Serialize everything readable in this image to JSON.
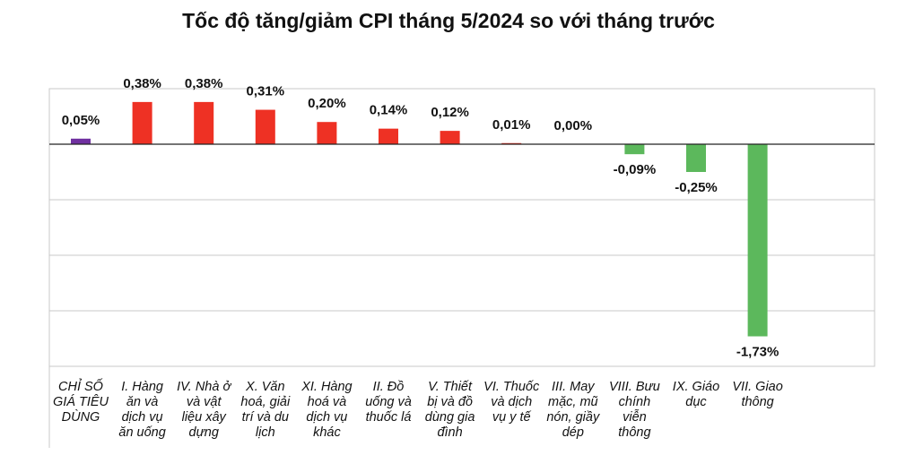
{
  "chart_data": {
    "type": "bar",
    "title": "Tốc độ tăng/giảm CPI tháng 5/2024 so với tháng trước",
    "unit": "%",
    "categories": [
      "CHỈ SỐ GIÁ TIÊU DÙNG",
      "I. Hàng ăn và dịch vụ ăn uống",
      "IV. Nhà ở và vật liệu xây dựng",
      "X. Văn hoá, giải trí và du lịch",
      "XI. Hàng hoá và dịch vụ khác",
      "II. Đồ uống và thuốc lá",
      "V. Thiết bị và đồ dùng gia đình",
      "VI. Thuốc và dịch vụ y tế",
      "III. May mặc, mũ nón, giầy dép",
      "VIII. Bưu chính viễn thông",
      "IX. Giáo dục",
      "VII. Giao thông"
    ],
    "category_lines": [
      [
        "CHỈ SỐ",
        "GIÁ TIÊU",
        "DÙNG"
      ],
      [
        "I. Hàng",
        "ăn và",
        "dịch vụ",
        "ăn uống"
      ],
      [
        "IV. Nhà ở",
        "và vật",
        "liệu xây",
        "dựng"
      ],
      [
        "X. Văn",
        "hoá, giải",
        "trí và du",
        "lịch"
      ],
      [
        "XI. Hàng",
        "hoá và",
        "dịch vụ",
        "khác"
      ],
      [
        "II. Đồ",
        "uống và",
        "thuốc lá"
      ],
      [
        "V. Thiết",
        "bị và đồ",
        "dùng gia",
        "đình"
      ],
      [
        "VI. Thuốc",
        "và dịch",
        "vụ y tế"
      ],
      [
        "III. May",
        "mặc, mũ",
        "nón, giầy",
        "dép"
      ],
      [
        "VIII. Bưu",
        "chính",
        "viễn",
        "thông"
      ],
      [
        "IX. Giáo",
        "dục"
      ],
      [
        "VII. Giao",
        "thông"
      ]
    ],
    "values": [
      0.05,
      0.38,
      0.38,
      0.31,
      0.2,
      0.14,
      0.12,
      0.01,
      0.0,
      -0.09,
      -0.25,
      -1.73
    ],
    "value_labels": [
      "0,05%",
      "0,38%",
      "0,38%",
      "0,31%",
      "0,20%",
      "0,14%",
      "0,12%",
      "0,01%",
      "0,00%",
      "-0,09%",
      "-0,25%",
      "-1,73%"
    ],
    "colors": {
      "total": "#7030A0",
      "increase": "#EE3124",
      "decrease": "#5CB85C",
      "grid": "#C8C8C8",
      "axis": "#222222"
    },
    "ylim": [
      -2.0,
      0.5
    ],
    "grid": true,
    "legend": "none",
    "xlabel": "",
    "ylabel": ""
  }
}
